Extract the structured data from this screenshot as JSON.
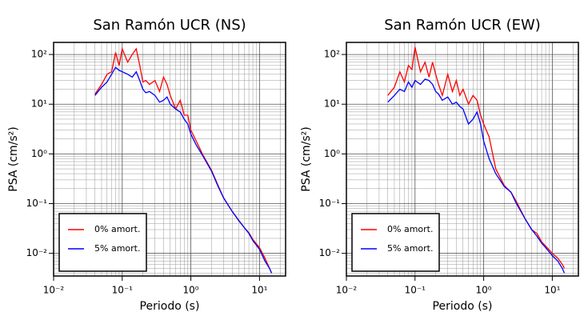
{
  "chart_data": [
    {
      "type": "line",
      "title": "San Ramón UCR (NS)",
      "xlabel": "Periodo (s)",
      "ylabel": "PSA (cm/s²)",
      "log_x": true,
      "log_y": true,
      "grid": true,
      "legend": "lower left",
      "xlim": [
        0.01,
        24
      ],
      "ylim": [
        0.0035,
        175
      ],
      "xticks": [
        {
          "value": 0.01,
          "label": "10⁻²"
        },
        {
          "value": 0.1,
          "label": "10⁻¹"
        },
        {
          "value": 1,
          "label": "10⁰"
        },
        {
          "value": 10,
          "label": "10¹"
        }
      ],
      "yticks": [
        {
          "value": 0.01,
          "label": "10⁻²"
        },
        {
          "value": 0.1,
          "label": "10⁻¹"
        },
        {
          "value": 1,
          "label": "10⁰"
        },
        {
          "value": 10,
          "label": "10¹"
        },
        {
          "value": 100,
          "label": "10²"
        }
      ],
      "xminor": [
        0.02,
        0.03,
        0.04,
        0.05,
        0.06,
        0.07,
        0.08,
        0.09,
        0.2,
        0.3,
        0.4,
        0.5,
        0.6,
        0.7,
        0.8,
        0.9,
        2,
        3,
        4,
        5,
        6,
        7,
        8,
        9,
        20
      ],
      "yminor": [
        0.004,
        0.005,
        0.006,
        0.007,
        0.008,
        0.009,
        0.02,
        0.03,
        0.04,
        0.05,
        0.06,
        0.07,
        0.08,
        0.09,
        0.2,
        0.3,
        0.4,
        0.5,
        0.6,
        0.7,
        0.8,
        0.9,
        2,
        3,
        4,
        5,
        6,
        7,
        8,
        9,
        20,
        30,
        40,
        50,
        60,
        70,
        80,
        90
      ],
      "x": [
        0.04,
        0.05,
        0.06,
        0.07,
        0.08,
        0.09,
        0.1,
        0.12,
        0.14,
        0.16,
        0.18,
        0.2,
        0.22,
        0.25,
        0.3,
        0.35,
        0.4,
        0.45,
        0.5,
        0.6,
        0.7,
        0.8,
        0.9,
        1.0,
        1.2,
        1.5,
        2,
        2.5,
        3,
        4,
        5,
        6,
        7,
        8,
        10,
        12,
        14,
        15
      ],
      "series": [
        {
          "name": "0% amort.",
          "color": "#ff0000",
          "values": [
            16,
            25,
            40,
            45,
            110,
            60,
            130,
            70,
            100,
            130,
            60,
            28,
            30,
            25,
            30,
            18,
            35,
            25,
            15,
            8,
            12,
            6,
            6,
            3,
            1.8,
            0.95,
            0.47,
            0.23,
            0.13,
            0.07,
            0.046,
            0.033,
            0.026,
            0.019,
            0.013,
            0.008,
            0.005,
            0.004
          ]
        },
        {
          "name": "5% amort.",
          "color": "#0000ff",
          "values": [
            15,
            22,
            28,
            40,
            55,
            48,
            45,
            40,
            35,
            45,
            30,
            20,
            17,
            18,
            15,
            11,
            12,
            14,
            10,
            8,
            7,
            5,
            4,
            2.5,
            1.5,
            0.9,
            0.45,
            0.22,
            0.13,
            0.07,
            0.045,
            0.033,
            0.025,
            0.018,
            0.012,
            0.007,
            0.005,
            0.004
          ]
        }
      ]
    },
    {
      "type": "line",
      "title": "San Ramón UCR (EW)",
      "xlabel": "Periodo (s)",
      "ylabel": "PSA (cm/s²)",
      "log_x": true,
      "log_y": true,
      "grid": true,
      "legend": "lower left",
      "xlim": [
        0.01,
        24
      ],
      "ylim": [
        0.0035,
        175
      ],
      "xticks": [
        {
          "value": 0.01,
          "label": "10⁻²"
        },
        {
          "value": 0.1,
          "label": "10⁻¹"
        },
        {
          "value": 1,
          "label": "10⁰"
        },
        {
          "value": 10,
          "label": "10¹"
        }
      ],
      "yticks": [
        {
          "value": 0.01,
          "label": "10⁻²"
        },
        {
          "value": 0.1,
          "label": "10⁻¹"
        },
        {
          "value": 1,
          "label": "10⁰"
        },
        {
          "value": 10,
          "label": "10¹"
        },
        {
          "value": 100,
          "label": "10²"
        }
      ],
      "xminor": [
        0.02,
        0.03,
        0.04,
        0.05,
        0.06,
        0.07,
        0.08,
        0.09,
        0.2,
        0.3,
        0.4,
        0.5,
        0.6,
        0.7,
        0.8,
        0.9,
        2,
        3,
        4,
        5,
        6,
        7,
        8,
        9,
        20
      ],
      "yminor": [
        0.004,
        0.005,
        0.006,
        0.007,
        0.008,
        0.009,
        0.02,
        0.03,
        0.04,
        0.05,
        0.06,
        0.07,
        0.08,
        0.09,
        0.2,
        0.3,
        0.4,
        0.5,
        0.6,
        0.7,
        0.8,
        0.9,
        2,
        3,
        4,
        5,
        6,
        7,
        8,
        9,
        20,
        30,
        40,
        50,
        60,
        70,
        80,
        90
      ],
      "x": [
        0.04,
        0.05,
        0.06,
        0.07,
        0.08,
        0.09,
        0.1,
        0.12,
        0.14,
        0.16,
        0.18,
        0.2,
        0.22,
        0.25,
        0.3,
        0.35,
        0.4,
        0.45,
        0.5,
        0.6,
        0.7,
        0.8,
        0.9,
        1.0,
        1.2,
        1.5,
        2,
        2.5,
        3,
        4,
        5,
        6,
        7,
        8,
        10,
        12,
        14,
        15
      ],
      "series": [
        {
          "name": "0% amort.",
          "color": "#ff0000",
          "values": [
            15,
            22,
            45,
            28,
            60,
            50,
            140,
            45,
            70,
            35,
            70,
            40,
            25,
            15,
            40,
            18,
            30,
            15,
            20,
            10,
            15,
            12,
            6,
            4,
            2.2,
            0.5,
            0.23,
            0.17,
            0.11,
            0.05,
            0.03,
            0.025,
            0.017,
            0.014,
            0.01,
            0.008,
            0.006,
            0.005
          ]
        },
        {
          "name": "5% amort.",
          "color": "#0000ff",
          "values": [
            11,
            15,
            20,
            18,
            28,
            22,
            30,
            25,
            32,
            30,
            25,
            18,
            16,
            12,
            14,
            10,
            11,
            9,
            8,
            4,
            5,
            7,
            4,
            1.8,
            0.8,
            0.4,
            0.22,
            0.17,
            0.1,
            0.05,
            0.03,
            0.022,
            0.016,
            0.013,
            0.009,
            0.007,
            0.005,
            0.004
          ]
        }
      ]
    }
  ]
}
